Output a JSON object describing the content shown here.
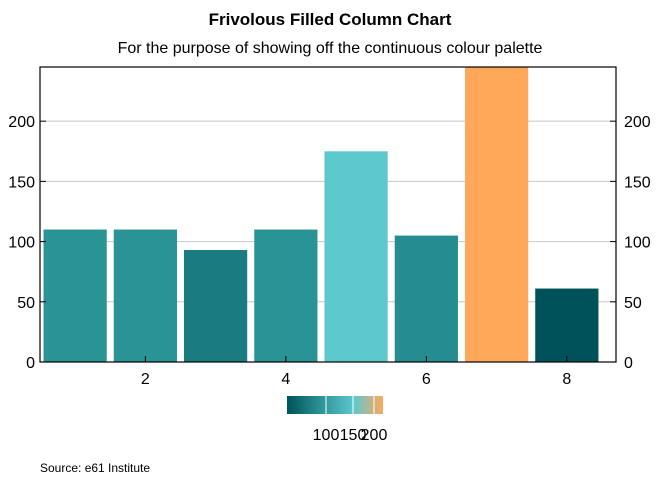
{
  "chart_data": {
    "type": "bar",
    "title": "Frivolous Filled Column Chart",
    "subtitle": "For the purpose of showing off the continuous colour palette",
    "xlabel": "",
    "ylabel": "",
    "x": [
      1,
      2,
      3,
      4,
      5,
      6,
      7,
      8
    ],
    "values": [
      110,
      110,
      93,
      110,
      175,
      105,
      245,
      61
    ],
    "bar_colors": [
      "#2a9395",
      "#2a9395",
      "#1a7b80",
      "#2a9395",
      "#5ec8cf",
      "#258c92",
      "#ffa85a",
      "#00525a"
    ],
    "xlim": [
      0.5,
      8.7
    ],
    "ylim": [
      0,
      245
    ],
    "x_ticks": [
      2,
      4,
      6,
      8
    ],
    "y_ticks": [
      0,
      50,
      100,
      150,
      200
    ],
    "y_tick_labels_left": [
      "0",
      "50",
      "100",
      "150",
      "200"
    ],
    "y_tick_labels_right": [
      "0",
      "50",
      "100",
      "150",
      "200"
    ],
    "grid": true,
    "colorbar": {
      "ticks": [
        "100",
        "150",
        "200"
      ],
      "colors": [
        "#00525a",
        "#2a9395",
        "#5ec8cf",
        "#ffa85a"
      ]
    },
    "source": "Source: e61 Institute"
  }
}
